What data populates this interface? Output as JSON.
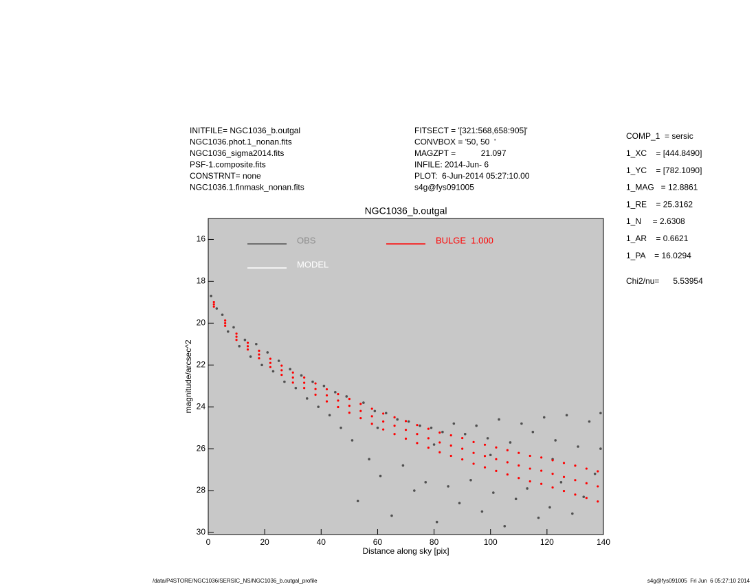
{
  "header": {
    "left": [
      "INITFILE= NGC1036_b.outgal",
      "NGC1036.phot.1_nonan.fits",
      "NGC1036_sigma2014.fits",
      "PSF-1.composite.fits",
      "CONSTRNT= none",
      "NGC1036.1.finmask_nonan.fits"
    ],
    "middle": [
      "FITSECT = '[321:568,658:905]'",
      "CONVBOX = '50, 50  '",
      "MAGZPT =           21.097",
      "INFILE: 2014-Jun- 6",
      "PLOT:  6-Jun-2014 05:27:10.00",
      "s4g@fys091005"
    ],
    "right": [
      "COMP_1  = sersic",
      "1_XC    = [444.8490]",
      "1_YC    = [782.1090]",
      "1_MAG   = 12.8861",
      "1_RE    = 25.3162",
      "1_N     = 2.6308",
      "1_AR    = 0.6621",
      "1_PA    = 16.0294"
    ],
    "chi2": "Chi2/nu=      5.53954"
  },
  "footer": {
    "left": "/data/P4STORE/NGC1036/SERSIC_NS/NGC1036_b.outgal_profile",
    "right": "s4g@fys091005  Fri Jun  6 05:27:10 2014"
  },
  "chart_data": {
    "type": "scatter",
    "title": "NGC1036_b.outgal",
    "x_label": "Distance along sky [pix]",
    "y_label": "magnitude/arcsec^2",
    "xlim": [
      0,
      140
    ],
    "xticks": [
      0,
      20,
      40,
      60,
      80,
      100,
      120,
      140
    ],
    "ylim": [
      30.1,
      15
    ],
    "yticks": [
      16,
      18,
      20,
      22,
      24,
      26,
      28,
      30
    ],
    "background": "#c8c8c8",
    "series": [
      {
        "name": "OBS",
        "color": "#505050",
        "x": [
          1,
          3,
          5,
          7,
          9,
          11,
          13,
          15,
          17,
          19,
          21,
          23,
          25,
          27,
          29,
          31,
          33,
          35,
          37,
          39,
          41,
          43,
          45,
          47,
          49,
          51,
          53,
          55,
          57,
          59,
          61,
          63,
          65,
          67,
          69,
          71,
          73,
          75,
          77,
          79,
          81,
          83,
          85,
          87,
          89,
          91,
          93,
          95,
          97,
          99,
          101,
          103,
          105,
          107,
          109,
          111,
          113,
          115,
          117,
          119,
          121,
          123,
          125,
          127,
          129,
          131,
          133,
          135,
          137,
          139,
          139,
          122,
          100,
          80,
          60
        ],
        "values": [
          18.7,
          19.3,
          19.6,
          20.4,
          20.2,
          21.1,
          20.8,
          21.6,
          21.0,
          22.0,
          21.4,
          22.3,
          21.8,
          22.8,
          22.2,
          23.1,
          22.5,
          23.6,
          22.8,
          24.0,
          23.0,
          24.4,
          23.3,
          25.0,
          23.5,
          25.6,
          28.5,
          23.8,
          26.5,
          24.2,
          27.3,
          24.3,
          29.2,
          24.6,
          26.8,
          24.7,
          28.0,
          24.9,
          27.6,
          25.0,
          29.5,
          25.2,
          27.8,
          24.8,
          28.6,
          25.3,
          27.5,
          24.9,
          29.0,
          25.5,
          28.1,
          24.6,
          29.7,
          25.7,
          28.4,
          24.8,
          27.9,
          25.2,
          29.3,
          24.5,
          28.8,
          25.6,
          27.6,
          24.4,
          29.1,
          25.9,
          28.3,
          24.7,
          27.2,
          24.3,
          26.0,
          26.5,
          26.3,
          25.8,
          25.0
        ]
      },
      {
        "name": "MODEL",
        "color": "#ffffff",
        "x": [],
        "values": []
      },
      {
        "name": "BULGE  1.000",
        "color": "#ff0000",
        "x": [
          2,
          2,
          2,
          6,
          6,
          6,
          10,
          10,
          10,
          14,
          14,
          14,
          18,
          18,
          18,
          22,
          22,
          22,
          26,
          26,
          26,
          30,
          30,
          30,
          34,
          34,
          34,
          38,
          38,
          38,
          42,
          42,
          42,
          46,
          46,
          46,
          50,
          50,
          50,
          54,
          54,
          54,
          58,
          58,
          58,
          62,
          62,
          62,
          66,
          66,
          66,
          70,
          70,
          70,
          74,
          74,
          74,
          78,
          78,
          78,
          82,
          82,
          82,
          86,
          86,
          86,
          90,
          90,
          90,
          94,
          94,
          94,
          98,
          98,
          98,
          102,
          102,
          102,
          106,
          106,
          106,
          110,
          110,
          110,
          114,
          114,
          114,
          118,
          118,
          118,
          122,
          122,
          122,
          126,
          126,
          126,
          130,
          130,
          130,
          134,
          134,
          134,
          138,
          138,
          138
        ],
        "values": [
          18.99,
          19.1,
          19.21,
          19.87,
          20.0,
          20.13,
          20.5,
          20.65,
          20.8,
          20.94,
          21.1,
          21.26,
          21.32,
          21.5,
          21.68,
          21.7,
          21.9,
          22.1,
          22.03,
          22.25,
          22.47,
          22.36,
          22.6,
          22.84,
          22.6,
          22.85,
          23.1,
          22.88,
          23.15,
          23.42,
          23.16,
          23.45,
          23.74,
          23.39,
          23.7,
          24.01,
          23.62,
          23.95,
          24.28,
          23.86,
          24.2,
          24.54,
          24.09,
          24.45,
          24.81,
          24.32,
          24.7,
          25.08,
          24.5,
          24.9,
          25.3,
          24.68,
          25.1,
          25.52,
          24.87,
          25.3,
          25.73,
          25.05,
          25.5,
          25.95,
          25.23,
          25.7,
          26.17,
          25.36,
          25.85,
          26.34,
          25.49,
          26.0,
          26.51,
          25.68,
          26.2,
          26.72,
          25.81,
          26.35,
          26.89,
          25.94,
          26.5,
          27.06,
          26.07,
          26.65,
          27.23,
          26.2,
          26.8,
          27.4,
          26.34,
          26.95,
          27.56,
          26.42,
          27.05,
          27.68,
          26.55,
          27.2,
          27.85,
          26.68,
          27.35,
          28.02,
          26.81,
          27.5,
          28.19,
          26.95,
          27.65,
          28.35,
          27.08,
          27.8,
          28.52
        ]
      }
    ]
  }
}
